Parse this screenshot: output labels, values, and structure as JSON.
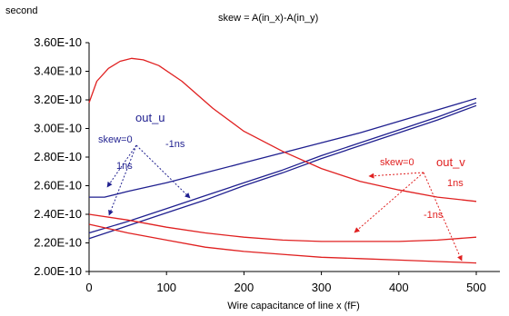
{
  "chart_data": {
    "type": "line",
    "formula": "skew = A(in_x)-A(in_y)",
    "ylabel": "second",
    "xlabel": "Wire capacitance of line x (fF)",
    "xlim": [
      0,
      500
    ],
    "ylim": [
      2e-10,
      3.6e-10
    ],
    "xticks": [
      0,
      100,
      200,
      300,
      400,
      500
    ],
    "xtick_labels": [
      "0",
      "100",
      "200",
      "300",
      "400",
      "500"
    ],
    "yticks": [
      2e-10,
      2.2e-10,
      2.4e-10,
      2.6e-10,
      2.8e-10,
      3e-10,
      3.2e-10,
      3.4e-10,
      3.6e-10
    ],
    "ytick_labels": [
      "2.00E-10",
      "2.20E-10",
      "2.40E-10",
      "2.60E-10",
      "2.80E-10",
      "3.00E-10",
      "3.20E-10",
      "3.40E-10",
      "3.60E-10"
    ],
    "grid": false,
    "colors": {
      "out_u": "#1f1f8f",
      "out_v": "#e02020"
    },
    "series": [
      {
        "group": "out_u",
        "x": [
          0,
          20,
          50,
          100,
          150,
          200,
          250,
          300,
          350,
          400,
          450,
          500
        ],
        "y": [
          2.52e-10,
          2.52e-10,
          2.56e-10,
          2.62e-10,
          2.69e-10,
          2.76e-10,
          2.83e-10,
          2.9e-10,
          2.97e-10,
          3.05e-10,
          3.13e-10,
          3.21e-10
        ]
      },
      {
        "group": "out_u",
        "x": [
          0,
          50,
          100,
          150,
          200,
          250,
          300,
          350,
          400,
          450,
          500
        ],
        "y": [
          2.27e-10,
          2.35e-10,
          2.44e-10,
          2.53e-10,
          2.62e-10,
          2.71e-10,
          2.81e-10,
          2.9e-10,
          2.99e-10,
          3.08e-10,
          3.18e-10
        ]
      },
      {
        "group": "out_u",
        "x": [
          0,
          50,
          100,
          150,
          200,
          250,
          300,
          350,
          400,
          450,
          500
        ],
        "y": [
          2.23e-10,
          2.32e-10,
          2.41e-10,
          2.5e-10,
          2.6e-10,
          2.69e-10,
          2.79e-10,
          2.88e-10,
          2.97e-10,
          3.06e-10,
          3.16e-10
        ]
      },
      {
        "group": "out_v",
        "x": [
          0,
          10,
          25,
          40,
          55,
          70,
          90,
          120,
          160,
          200,
          250,
          300,
          350,
          400,
          450,
          500
        ],
        "y": [
          3.18e-10,
          3.33e-10,
          3.42e-10,
          3.47e-10,
          3.49e-10,
          3.48e-10,
          3.44e-10,
          3.33e-10,
          3.14e-10,
          2.98e-10,
          2.84e-10,
          2.72e-10,
          2.63e-10,
          2.57e-10,
          2.52e-10,
          2.49e-10
        ]
      },
      {
        "group": "out_v",
        "x": [
          0,
          50,
          100,
          150,
          200,
          250,
          300,
          350,
          400,
          450,
          500
        ],
        "y": [
          2.4e-10,
          2.36e-10,
          2.31e-10,
          2.27e-10,
          2.24e-10,
          2.22e-10,
          2.21e-10,
          2.21e-10,
          2.21e-10,
          2.22e-10,
          2.24e-10
        ]
      },
      {
        "group": "out_v",
        "x": [
          0,
          50,
          100,
          150,
          200,
          250,
          300,
          350,
          400,
          450,
          500
        ],
        "y": [
          2.33e-10,
          2.27e-10,
          2.22e-10,
          2.17e-10,
          2.14e-10,
          2.12e-10,
          2.1e-10,
          2.09e-10,
          2.08e-10,
          2.07e-10,
          2.06e-10
        ]
      }
    ],
    "annotations": {
      "out_u": {
        "label": "out_u",
        "skew0": "skew=0",
        "pos": "1ns",
        "neg": "-1ns"
      },
      "out_v": {
        "label": "out_v",
        "skew0": "skew=0",
        "pos": "1ns",
        "neg": "-1ns"
      }
    }
  }
}
